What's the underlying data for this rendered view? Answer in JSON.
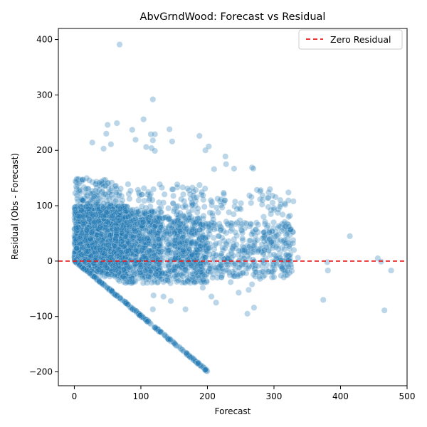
{
  "chart_data": {
    "type": "scatter",
    "title": "AbvGrndWood: Forecast vs Residual",
    "xlabel": "Forecast",
    "ylabel": "Residual (Obs - Forecast)",
    "xlim": [
      -24,
      500
    ],
    "ylim": [
      -225,
      420
    ],
    "xticks": [
      0,
      100,
      200,
      300,
      400,
      500
    ],
    "yticks": [
      -200,
      -100,
      0,
      100,
      200,
      300,
      400
    ],
    "grid": false,
    "point_color": "#1f77b4",
    "point_alpha": 0.3,
    "reference_line": {
      "y": 0,
      "color": "#e41a1c",
      "style": "dashed",
      "label": "Zero Residual"
    },
    "legend": {
      "position": "top-right",
      "entries": [
        "Zero Residual"
      ]
    },
    "dense_regions": [
      {
        "x_range": [
          0,
          80
        ],
        "y_range": [
          -20,
          100
        ],
        "count": 1600
      },
      {
        "x_range": [
          0,
          130
        ],
        "y_range": [
          -30,
          90
        ],
        "count": 900
      },
      {
        "x_range": [
          60,
          200
        ],
        "y_range": [
          -40,
          80
        ],
        "count": 700
      },
      {
        "x_range": [
          150,
          330
        ],
        "y_range": [
          -30,
          70
        ],
        "count": 520
      },
      {
        "x_range": [
          0,
          60
        ],
        "y_range": [
          80,
          150
        ],
        "count": 150
      },
      {
        "x_range": [
          60,
          200
        ],
        "y_range": [
          70,
          140
        ],
        "count": 140
      },
      {
        "x_range": [
          200,
          330
        ],
        "y_range": [
          60,
          130
        ],
        "count": 70
      }
    ],
    "boundary_line": {
      "description": "lower bound residual = -forecast",
      "x_range": [
        0,
        200
      ],
      "count": 220
    },
    "points": [
      {
        "x": 68,
        "y": 391
      },
      {
        "x": 118,
        "y": 292
      },
      {
        "x": 104,
        "y": 256
      },
      {
        "x": 64,
        "y": 249
      },
      {
        "x": 50,
        "y": 246
      },
      {
        "x": 48,
        "y": 230
      },
      {
        "x": 87,
        "y": 237
      },
      {
        "x": 143,
        "y": 238
      },
      {
        "x": 115,
        "y": 229
      },
      {
        "x": 121,
        "y": 229
      },
      {
        "x": 92,
        "y": 219
      },
      {
        "x": 118,
        "y": 218
      },
      {
        "x": 27,
        "y": 214
      },
      {
        "x": 55,
        "y": 211
      },
      {
        "x": 147,
        "y": 216
      },
      {
        "x": 188,
        "y": 226
      },
      {
        "x": 197,
        "y": 200
      },
      {
        "x": 202,
        "y": 207
      },
      {
        "x": 44,
        "y": 203
      },
      {
        "x": 108,
        "y": 206
      },
      {
        "x": 116,
        "y": 204
      },
      {
        "x": 121,
        "y": 199
      },
      {
        "x": 210,
        "y": 166
      },
      {
        "x": 227,
        "y": 189
      },
      {
        "x": 228,
        "y": 175
      },
      {
        "x": 240,
        "y": 167
      },
      {
        "x": 267,
        "y": 169
      },
      {
        "x": 269,
        "y": 167
      },
      {
        "x": 280,
        "y": 128
      },
      {
        "x": 292,
        "y": 124
      },
      {
        "x": 298,
        "y": 118
      },
      {
        "x": 309,
        "y": 98
      },
      {
        "x": 313,
        "y": 84
      },
      {
        "x": 322,
        "y": 80
      },
      {
        "x": 300,
        "y": 96
      },
      {
        "x": 302,
        "y": 44
      },
      {
        "x": 318,
        "y": 32
      },
      {
        "x": 330,
        "y": 20
      },
      {
        "x": 336,
        "y": 6
      },
      {
        "x": 322,
        "y": -10
      },
      {
        "x": 312,
        "y": -13
      },
      {
        "x": 296,
        "y": -20
      },
      {
        "x": 272,
        "y": -20
      },
      {
        "x": 279,
        "y": -32
      },
      {
        "x": 267,
        "y": -42
      },
      {
        "x": 262,
        "y": -52
      },
      {
        "x": 260,
        "y": -95
      },
      {
        "x": 270,
        "y": -84
      },
      {
        "x": 247,
        "y": -57
      },
      {
        "x": 235,
        "y": -38
      },
      {
        "x": 206,
        "y": -64
      },
      {
        "x": 213,
        "y": -75
      },
      {
        "x": 193,
        "y": -48
      },
      {
        "x": 199,
        "y": -36
      },
      {
        "x": 167,
        "y": -87
      },
      {
        "x": 145,
        "y": -72
      },
      {
        "x": 134,
        "y": -64
      },
      {
        "x": 118,
        "y": -87
      },
      {
        "x": 119,
        "y": -62
      },
      {
        "x": 380,
        "y": -2
      },
      {
        "x": 381,
        "y": -17
      },
      {
        "x": 374,
        "y": -70
      },
      {
        "x": 414,
        "y": 45
      },
      {
        "x": 456,
        "y": 5
      },
      {
        "x": 461,
        "y": -1
      },
      {
        "x": 466,
        "y": -89
      },
      {
        "x": 476,
        "y": -17
      }
    ]
  }
}
